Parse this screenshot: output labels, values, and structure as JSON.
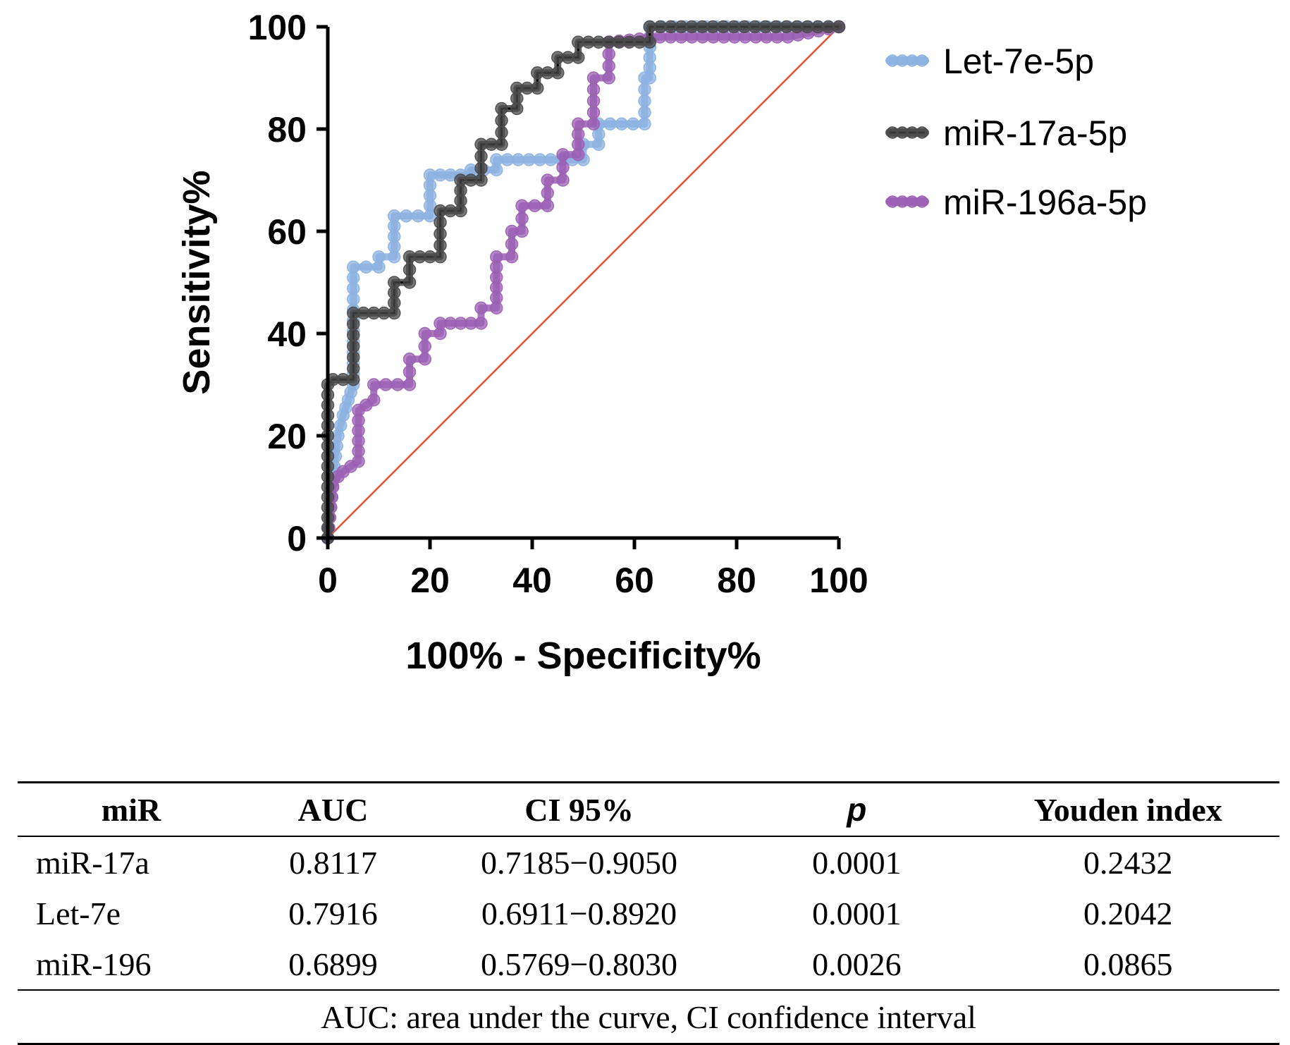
{
  "chart_data": {
    "type": "line",
    "subtype": "ROC step curve with point markers",
    "xlabel": "100% - Specificity%",
    "ylabel": "Sensitivity%",
    "xlim": [
      0,
      100
    ],
    "ylim": [
      0,
      100
    ],
    "x_ticks": [
      "0",
      "20",
      "40",
      "60",
      "80",
      "100"
    ],
    "y_ticks": [
      "0",
      "20",
      "40",
      "60",
      "80",
      "100"
    ],
    "grid": false,
    "legend_position": "top-right outside plot",
    "reference_line": {
      "x": [
        0,
        100
      ],
      "y": [
        0,
        100
      ],
      "color": "#e8502a"
    },
    "series": [
      {
        "name": "Let-7e-5p",
        "color": "#8cb1e0",
        "x": [
          0,
          1,
          2,
          3,
          4,
          5,
          5,
          10,
          10,
          13,
          13,
          20,
          20,
          28,
          28,
          33,
          33,
          50,
          50,
          53,
          53,
          62,
          62,
          63,
          63,
          70,
          100
        ],
        "y": [
          0,
          12,
          20,
          24,
          27,
          30,
          53,
          53,
          55,
          55,
          63,
          63,
          71,
          71,
          72,
          72,
          74,
          74,
          77,
          77,
          81,
          81,
          90,
          90,
          100,
          100,
          100
        ]
      },
      {
        "name": "miR-17a-5p",
        "color": "#4a4a4a",
        "x": [
          0,
          0,
          1,
          5,
          5,
          13,
          13,
          16,
          16,
          22,
          22,
          26,
          26,
          30,
          30,
          34,
          34,
          37,
          37,
          41,
          41,
          45,
          45,
          49,
          49,
          63,
          63,
          100
        ],
        "y": [
          0,
          30,
          31,
          31,
          44,
          44,
          50,
          50,
          55,
          55,
          64,
          64,
          70,
          70,
          77,
          77,
          84,
          84,
          88,
          88,
          91,
          91,
          94,
          94,
          97,
          97,
          100,
          100
        ]
      },
      {
        "name": "miR-196a-5p",
        "color": "#9b5fb3",
        "x": [
          0,
          1,
          2,
          3,
          6,
          6,
          9,
          9,
          16,
          16,
          19,
          19,
          22,
          22,
          30,
          30,
          33,
          33,
          36,
          36,
          38,
          38,
          43,
          43,
          46,
          46,
          49,
          49,
          52,
          52,
          55,
          55,
          65,
          90,
          100
        ],
        "y": [
          0,
          10,
          12,
          13,
          15,
          25,
          27,
          30,
          30,
          35,
          35,
          40,
          40,
          42,
          42,
          45,
          45,
          55,
          55,
          60,
          60,
          65,
          65,
          70,
          70,
          75,
          75,
          81,
          81,
          90,
          90,
          97,
          98,
          98,
          100
        ]
      }
    ]
  },
  "table": {
    "headers": [
      "miR",
      "AUC",
      "CI 95%",
      "p",
      "Youden index"
    ],
    "rows": [
      [
        "miR-17a",
        "0.8117",
        "0.7185−0.9050",
        "0.0001",
        "0.2432"
      ],
      [
        "Let-7e",
        "0.7916",
        "0.6911−0.8920",
        "0.0001",
        "0.2042"
      ],
      [
        "miR-196",
        "0.6899",
        "0.5769−0.8030",
        "0.0026",
        "0.0865"
      ]
    ],
    "footnote": "AUC: area under the curve, CI confidence interval"
  }
}
